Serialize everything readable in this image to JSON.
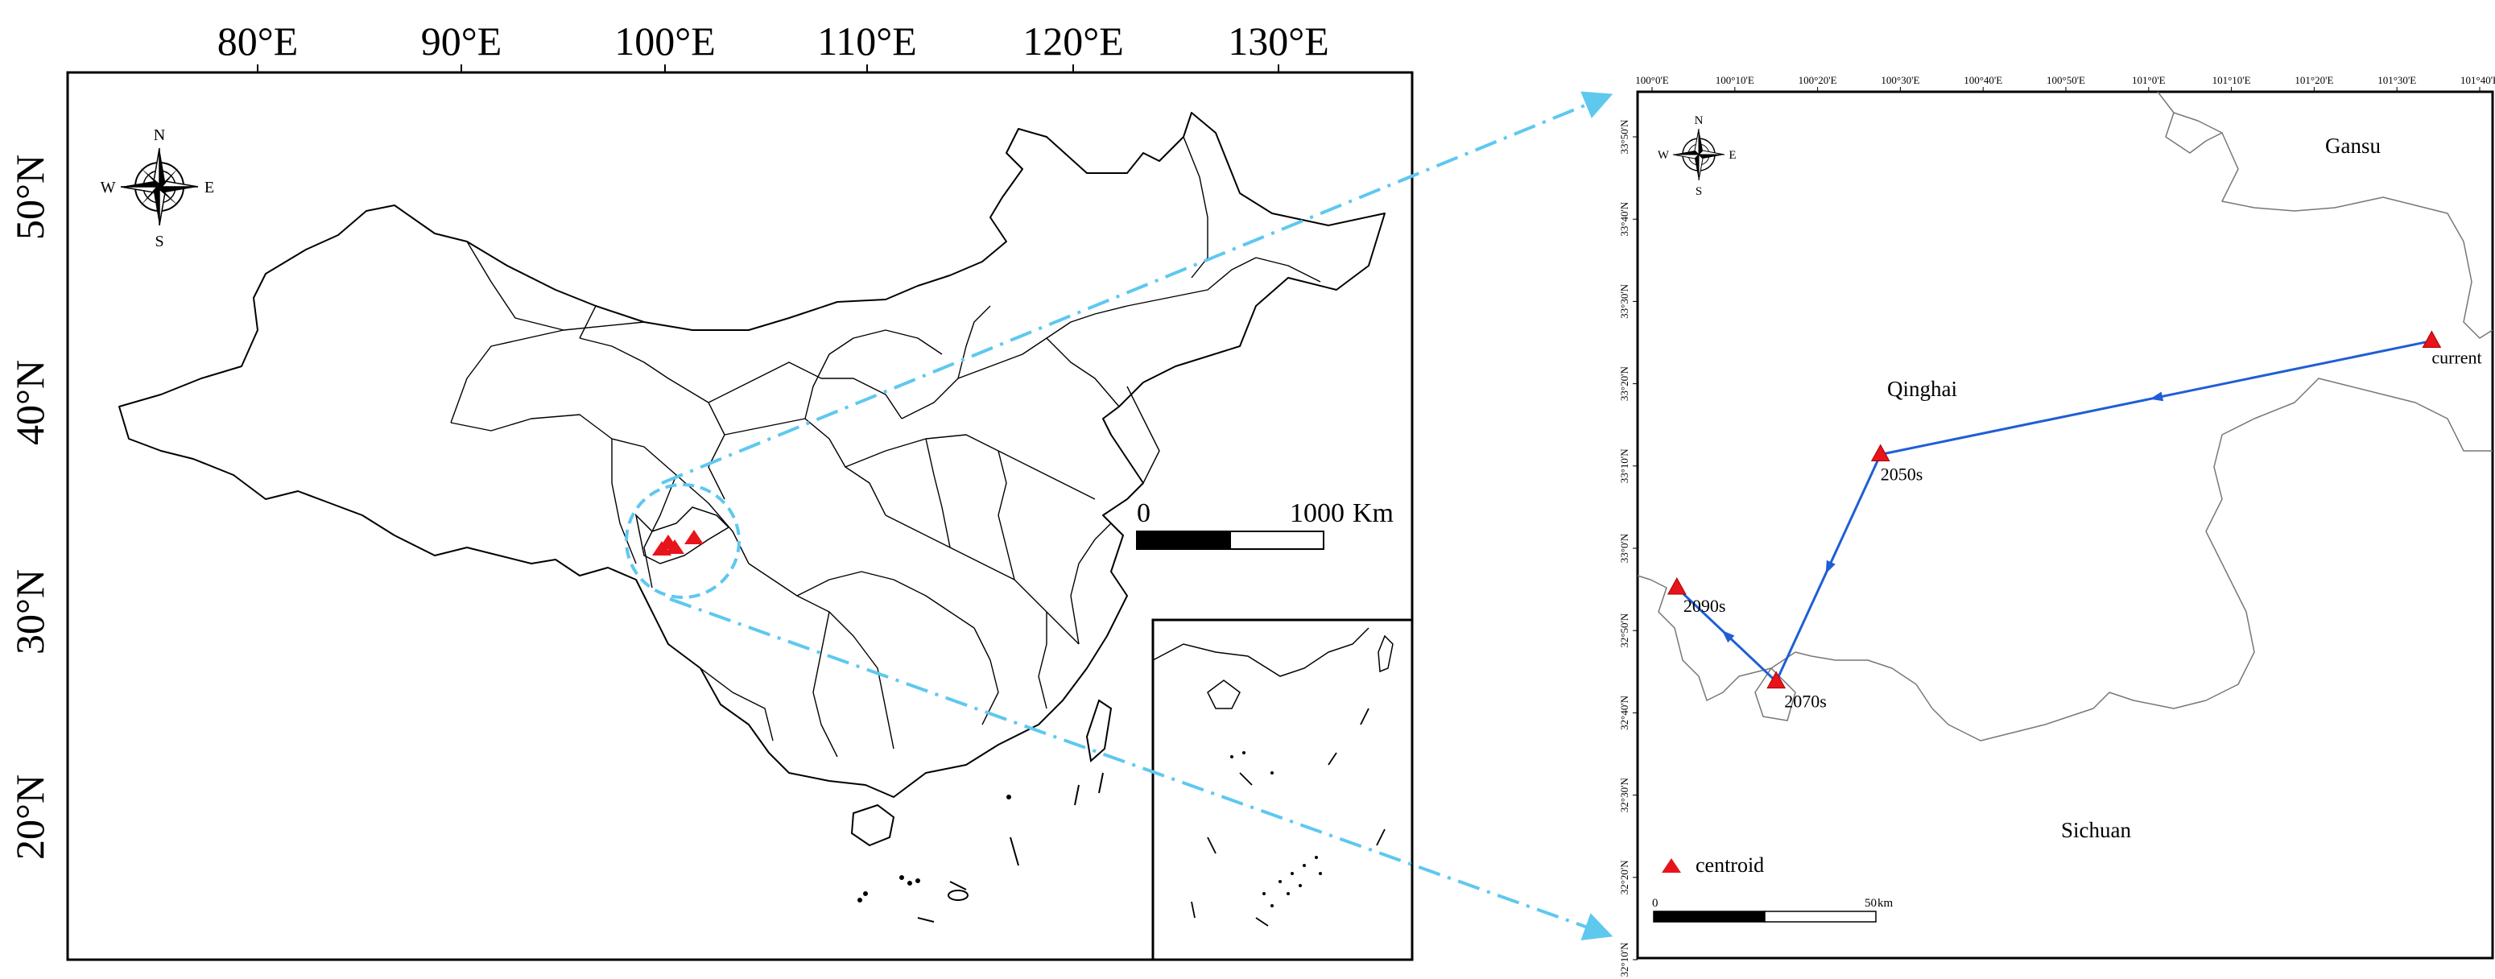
{
  "left_map": {
    "lon_ticks": [
      "80°E",
      "90°E",
      "100°E",
      "110°E",
      "120°E",
      "130°E"
    ],
    "lat_ticks": [
      "50°N",
      "40°N",
      "30°N",
      "20°N"
    ],
    "compass": {
      "n": "N",
      "s": "S",
      "e": "E",
      "w": "W"
    },
    "scale_bar": {
      "start": "0",
      "end": "1000",
      "unit": "Km"
    },
    "point_color": "#e8141b",
    "focus_circle_color": "#5ec8ef"
  },
  "right_map": {
    "lon_ticks": [
      "100°0'E",
      "100°10'E",
      "100°20'E",
      "100°30'E",
      "100°40'E",
      "100°50'E",
      "101°0'E",
      "101°10'E",
      "101°20'E",
      "101°30'E",
      "101°40'E"
    ],
    "lat_ticks": [
      "33°50'N",
      "33°40'N",
      "33°30'N",
      "33°20'N",
      "33°10'N",
      "33°0'N",
      "32°50'N",
      "32°40'N",
      "32°30'N",
      "32°20'N",
      "32°10'N"
    ],
    "compass": {
      "n": "N",
      "s": "S",
      "e": "E",
      "w": "W"
    },
    "regions": {
      "gansu": "Gansu",
      "qinghai": "Qinghai",
      "sichuan": "Sichuan"
    },
    "centroids": [
      {
        "label": "current",
        "lon": 101.57,
        "lat": 33.42
      },
      {
        "label": "2050s",
        "lon": 100.46,
        "lat": 33.19
      },
      {
        "label": "2070s",
        "lon": 100.25,
        "lat": 32.73
      },
      {
        "label": "2090s",
        "lon": 100.05,
        "lat": 32.92
      }
    ],
    "track_color": "#1f5ed6",
    "point_color": "#e8141b",
    "legend": {
      "label": "centroid"
    },
    "scale_bar": {
      "start": "0",
      "end": "50",
      "unit": "km"
    }
  },
  "connector_color": "#5ec8ef"
}
